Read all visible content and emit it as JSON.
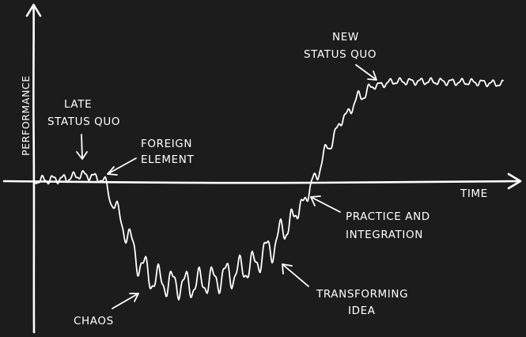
{
  "axes": {
    "y_label": "PERFORMANCE",
    "x_label": "TIME"
  },
  "annotations": {
    "late_status_quo": [
      "LATE",
      "STATUS QUO"
    ],
    "foreign_element": [
      "FOREIGN",
      "ELEMENT"
    ],
    "chaos": [
      "CHAOS"
    ],
    "transforming_idea": [
      "TRANSFORMING",
      "IDEA"
    ],
    "practice_and_integration": [
      "PRACTICE AND",
      "INTEGRATION"
    ],
    "new_status_quo": [
      "NEW",
      "STATUS QUO"
    ]
  },
  "colors": {
    "background": "#1c1c1c",
    "ink": "#ffffff"
  }
}
